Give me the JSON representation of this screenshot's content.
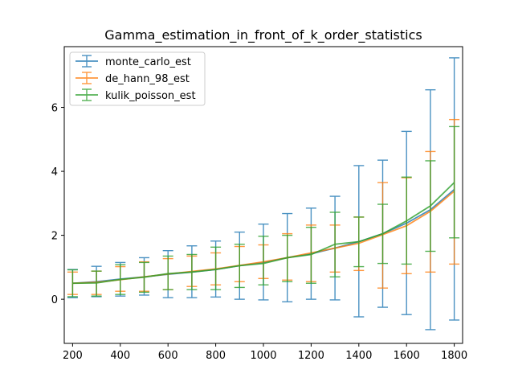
{
  "chart_data": {
    "type": "line",
    "title": "Gamma_estimation_in_front_of_k_order_statistics",
    "xlabel": "",
    "ylabel": "",
    "xlim": [
      165,
      1835
    ],
    "ylim": [
      -1.38,
      7.9
    ],
    "xticks": [
      200,
      400,
      600,
      800,
      1000,
      1200,
      1400,
      1600,
      1800
    ],
    "yticks": [
      0,
      2,
      4,
      6
    ],
    "grid": false,
    "legend_position": "top-left",
    "x": [
      200,
      300,
      400,
      500,
      600,
      700,
      800,
      900,
      1000,
      1100,
      1200,
      1300,
      1400,
      1500,
      1600,
      1700,
      1800
    ],
    "series": [
      {
        "name": "monte_carlo_est",
        "color": "#1f77b4",
        "values": [
          0.5,
          0.55,
          0.63,
          0.7,
          0.78,
          0.85,
          0.93,
          1.05,
          1.15,
          1.3,
          1.42,
          1.6,
          1.8,
          2.05,
          2.38,
          2.8,
          3.43
        ],
        "lower": [
          0.05,
          0.08,
          0.1,
          0.13,
          0.05,
          0.05,
          0.07,
          0.0,
          -0.02,
          -0.08,
          0.0,
          -0.02,
          -0.55,
          -0.25,
          -0.48,
          -0.95,
          -0.65
        ],
        "upper": [
          0.93,
          1.03,
          1.15,
          1.3,
          1.52,
          1.67,
          1.82,
          2.1,
          2.35,
          2.68,
          2.85,
          3.22,
          4.18,
          4.35,
          5.25,
          6.55,
          7.55
        ]
      },
      {
        "name": "de_hann_98_est",
        "color": "#ff7f0e",
        "values": [
          0.5,
          0.53,
          0.61,
          0.7,
          0.79,
          0.87,
          0.95,
          1.06,
          1.17,
          1.3,
          1.45,
          1.6,
          1.75,
          2.02,
          2.3,
          2.75,
          3.38
        ],
        "lower": [
          0.15,
          0.15,
          0.25,
          0.25,
          0.3,
          0.4,
          0.45,
          0.55,
          0.65,
          0.6,
          0.55,
          0.85,
          0.9,
          0.35,
          0.8,
          0.85,
          1.1
        ],
        "upper": [
          0.85,
          0.88,
          1.02,
          1.17,
          1.27,
          1.35,
          1.45,
          1.65,
          1.7,
          2.05,
          2.32,
          2.32,
          2.57,
          3.65,
          3.8,
          4.62,
          5.62
        ]
      },
      {
        "name": "kulik_poisson_est",
        "color": "#2ca02c",
        "values": [
          0.5,
          0.51,
          0.62,
          0.69,
          0.8,
          0.85,
          0.93,
          1.05,
          1.12,
          1.3,
          1.4,
          1.72,
          1.8,
          2.05,
          2.45,
          2.92,
          3.65
        ],
        "lower": [
          0.08,
          0.1,
          0.15,
          0.22,
          0.3,
          0.3,
          0.3,
          0.37,
          0.45,
          0.55,
          0.5,
          0.7,
          1.02,
          1.12,
          1.1,
          1.5,
          1.92
        ],
        "upper": [
          0.92,
          0.88,
          1.08,
          1.15,
          1.35,
          1.4,
          1.63,
          1.72,
          1.97,
          2.0,
          2.25,
          2.72,
          2.57,
          2.97,
          3.82,
          4.33,
          5.4
        ]
      }
    ]
  }
}
